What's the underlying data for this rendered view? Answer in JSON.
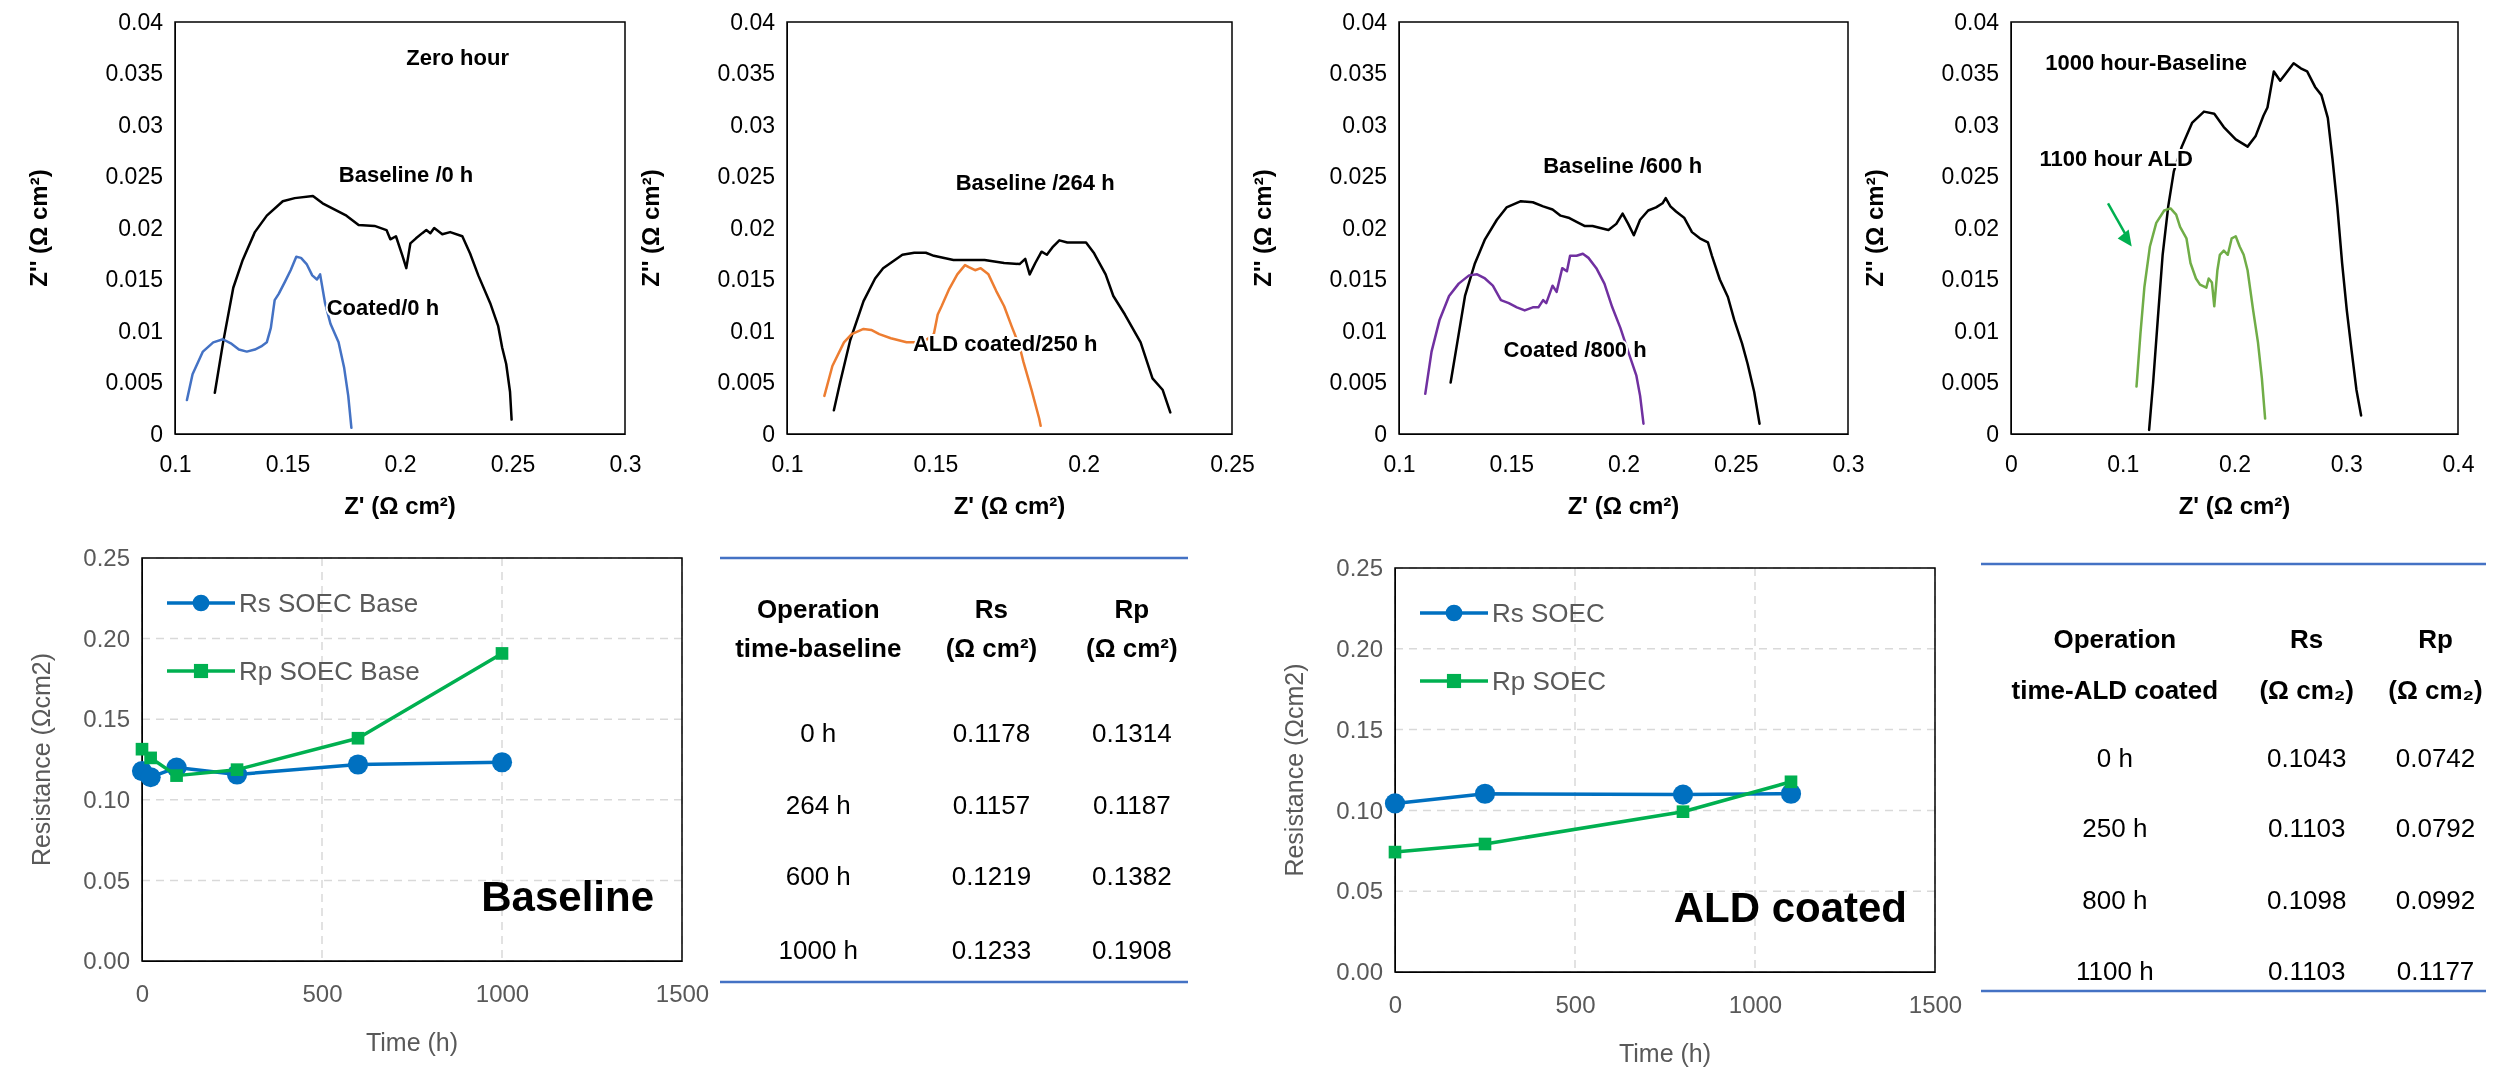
{
  "chart_data": [
    {
      "type": "line",
      "xlabel": "Z' (Ω cm²)",
      "ylabel": "Z'' (Ω cm²)",
      "xlim": [
        0.1,
        0.3
      ],
      "xticks": [
        0.1,
        0.15,
        0.2,
        0.25,
        0.3
      ],
      "ylim": [
        0,
        0.04
      ],
      "yticks": [
        0,
        0.005,
        0.01,
        0.015,
        0.02,
        0.025,
        0.03,
        0.035,
        0.04
      ],
      "series": [
        {
          "color": "#000000",
          "x": [
            0.1177,
            0.1213,
            0.1259,
            0.1301,
            0.1355,
            0.1408,
            0.1479,
            0.1532,
            0.1613,
            0.1656,
            0.1762,
            0.1816,
            0.1887,
            0.194,
            0.1957,
            0.1982,
            0.2011,
            0.2028,
            0.2046,
            0.2071,
            0.2099,
            0.2117,
            0.2135,
            0.2152,
            0.2188,
            0.2223,
            0.2277,
            0.2312,
            0.2348,
            0.2401,
            0.2436,
            0.2454,
            0.2472,
            0.2489,
            0.2496
          ],
          "values": [
            0.004,
            0.0088,
            0.0142,
            0.0169,
            0.0196,
            0.0212,
            0.0226,
            0.0229,
            0.0231,
            0.0224,
            0.0212,
            0.0203,
            0.0202,
            0.0198,
            0.0189,
            0.0192,
            0.0173,
            0.0161,
            0.0185,
            0.019,
            0.0195,
            0.0198,
            0.0195,
            0.02,
            0.0194,
            0.0196,
            0.0192,
            0.0175,
            0.0154,
            0.0127,
            0.0105,
            0.0084,
            0.0068,
            0.0041,
            0.0014
          ]
        },
        {
          "color": "#4472c4",
          "x": [
            0.1053,
            0.1078,
            0.1124,
            0.117,
            0.1213,
            0.1248,
            0.1284,
            0.1319,
            0.1355,
            0.1383,
            0.1408,
            0.1426,
            0.1443,
            0.1461,
            0.1489,
            0.1514,
            0.1539,
            0.156,
            0.1585,
            0.161,
            0.1631,
            0.1645,
            0.1667,
            0.1691,
            0.1727,
            0.1752,
            0.177,
            0.1784
          ],
          "values": [
            0.0033,
            0.0058,
            0.008,
            0.0089,
            0.0092,
            0.0088,
            0.0082,
            0.008,
            0.0082,
            0.0085,
            0.0089,
            0.0103,
            0.013,
            0.0136,
            0.0148,
            0.0159,
            0.0172,
            0.0171,
            0.0165,
            0.0154,
            0.015,
            0.0155,
            0.0127,
            0.0107,
            0.0089,
            0.0064,
            0.0037,
            0.0006
          ]
        }
      ],
      "annotations": [
        "Zero hour",
        "Baseline /0 h",
        "Coated/0 h"
      ]
    },
    {
      "type": "line",
      "xlabel": "Z' (Ω cm²)",
      "ylabel": "Z'' (Ω cm²)",
      "xlim": [
        0.1,
        0.25
      ],
      "xticks": [
        0.1,
        0.15,
        0.2,
        0.25
      ],
      "ylim": [
        0,
        0.04
      ],
      "yticks": [
        0,
        0.005,
        0.01,
        0.015,
        0.02,
        0.025,
        0.03,
        0.035,
        0.04
      ],
      "series": [
        {
          "color": "#000000",
          "x": [
            0.1158,
            0.1179,
            0.1213,
            0.1258,
            0.1297,
            0.1324,
            0.1389,
            0.1429,
            0.1468,
            0.1495,
            0.1561,
            0.1613,
            0.1666,
            0.1732,
            0.1784,
            0.1803,
            0.1818,
            0.1837,
            0.1858,
            0.1876,
            0.1897,
            0.1918,
            0.1945,
            0.2008,
            0.2034,
            0.2074,
            0.21,
            0.2139,
            0.2192,
            0.2232,
            0.2266,
            0.2292
          ],
          "values": [
            0.0023,
            0.005,
            0.0091,
            0.0129,
            0.0151,
            0.0161,
            0.0174,
            0.0176,
            0.0176,
            0.0173,
            0.0169,
            0.0169,
            0.0169,
            0.0166,
            0.0165,
            0.017,
            0.0155,
            0.0166,
            0.0177,
            0.0174,
            0.0182,
            0.0188,
            0.0186,
            0.0186,
            0.0176,
            0.0155,
            0.0134,
            0.0116,
            0.0089,
            0.0054,
            0.0043,
            0.0021
          ]
        },
        {
          "color": "#ed7d31",
          "x": [
            0.1126,
            0.1153,
            0.1192,
            0.1218,
            0.1258,
            0.1284,
            0.1311,
            0.135,
            0.1403,
            0.1429,
            0.1468,
            0.1495,
            0.1508,
            0.1521,
            0.1547,
            0.1574,
            0.16,
            0.1613,
            0.1634,
            0.1653,
            0.1679,
            0.1705,
            0.1732,
            0.1758,
            0.1784,
            0.1797,
            0.1824,
            0.185,
            0.1855
          ],
          "values": [
            0.0037,
            0.0066,
            0.0089,
            0.0097,
            0.0102,
            0.0101,
            0.0097,
            0.0093,
            0.0089,
            0.0089,
            0.0091,
            0.0097,
            0.0116,
            0.0124,
            0.0141,
            0.0155,
            0.0164,
            0.0162,
            0.0159,
            0.0161,
            0.0155,
            0.0139,
            0.0124,
            0.0104,
            0.0085,
            0.007,
            0.0043,
            0.0015,
            0.0008
          ]
        }
      ],
      "annotations": [
        "Baseline /264 h",
        "ALD coated/250 h"
      ]
    },
    {
      "type": "line",
      "xlabel": "Z' (Ω cm²)",
      "ylabel": "Z'' (Ω cm²)",
      "xlim": [
        0.1,
        0.3
      ],
      "xticks": [
        0.1,
        0.15,
        0.2,
        0.25,
        0.3
      ],
      "ylim": [
        0,
        0.04
      ],
      "yticks": [
        0,
        0.005,
        0.01,
        0.015,
        0.02,
        0.025,
        0.03,
        0.035,
        0.04
      ],
      "series": [
        {
          "color": "#000000",
          "x": [
            0.123,
            0.1259,
            0.1294,
            0.1337,
            0.1383,
            0.1436,
            0.1479,
            0.1543,
            0.1596,
            0.1642,
            0.1684,
            0.172,
            0.1755,
            0.1791,
            0.1826,
            0.1862,
            0.1897,
            0.1933,
            0.1968,
            0.1996,
            0.2021,
            0.2046,
            0.2074,
            0.211,
            0.2145,
            0.2174,
            0.2188,
            0.2209,
            0.2234,
            0.227,
            0.2305,
            0.234,
            0.2376,
            0.2394,
            0.2429,
            0.2465,
            0.2493,
            0.2528,
            0.2553,
            0.2582,
            0.2606
          ],
          "values": [
            0.005,
            0.0088,
            0.0134,
            0.0165,
            0.0189,
            0.0208,
            0.022,
            0.0226,
            0.0225,
            0.0221,
            0.0218,
            0.0212,
            0.021,
            0.0206,
            0.0202,
            0.0202,
            0.02,
            0.0198,
            0.0204,
            0.0214,
            0.0204,
            0.0193,
            0.0208,
            0.0217,
            0.022,
            0.0224,
            0.0229,
            0.0221,
            0.0216,
            0.021,
            0.0196,
            0.019,
            0.0186,
            0.0173,
            0.015,
            0.0133,
            0.0111,
            0.0088,
            0.0068,
            0.0041,
            0.001
          ]
        },
        {
          "color": "#7030a0",
          "x": [
            0.1117,
            0.1145,
            0.1181,
            0.1223,
            0.1266,
            0.1312,
            0.1348,
            0.1383,
            0.1418,
            0.1454,
            0.1489,
            0.1525,
            0.156,
            0.1596,
            0.1621,
            0.1642,
            0.1656,
            0.1684,
            0.1702,
            0.1727,
            0.1748,
            0.1762,
            0.1791,
            0.1819,
            0.1844,
            0.1879,
            0.1915,
            0.195,
            0.1986,
            0.2021,
            0.2057,
            0.2074,
            0.2089
          ],
          "values": [
            0.0039,
            0.008,
            0.0111,
            0.0134,
            0.0146,
            0.0154,
            0.0155,
            0.0151,
            0.0144,
            0.013,
            0.0127,
            0.0123,
            0.012,
            0.0123,
            0.0123,
            0.013,
            0.0127,
            0.0144,
            0.0138,
            0.0161,
            0.0158,
            0.0173,
            0.0173,
            0.0175,
            0.0171,
            0.0161,
            0.0146,
            0.0123,
            0.0103,
            0.008,
            0.0057,
            0.0037,
            0.001
          ]
        }
      ],
      "annotations": [
        "Baseline /600 h",
        "Coated /800 h"
      ]
    },
    {
      "type": "line",
      "xlabel": "Z' (Ω cm²)",
      "ylabel": "Z'' (Ω cm²)",
      "xlim": [
        0,
        0.4
      ],
      "xticks": [
        0,
        0.1,
        0.2,
        0.3,
        0.4
      ],
      "ylim": [
        0,
        0.04
      ],
      "yticks": [
        0,
        0.005,
        0.01,
        0.015,
        0.02,
        0.025,
        0.03,
        0.035,
        0.04
      ],
      "series": [
        {
          "color": "#000000",
          "x": [
            0.1236,
            0.1272,
            0.1314,
            0.1357,
            0.1407,
            0.1457,
            0.1528,
            0.162,
            0.1727,
            0.1819,
            0.1904,
            0.2011,
            0.2117,
            0.2188,
            0.2259,
            0.2295,
            0.2352,
            0.2409,
            0.2473,
            0.2529,
            0.2593,
            0.265,
            0.2721,
            0.2778,
            0.2835,
            0.2877,
            0.292,
            0.2963,
            0.3005,
            0.3048,
            0.3091,
            0.3133
          ],
          "values": [
            0.0004,
            0.005,
            0.0112,
            0.0174,
            0.0221,
            0.0255,
            0.0279,
            0.0302,
            0.0313,
            0.0311,
            0.0298,
            0.0286,
            0.0279,
            0.0289,
            0.0309,
            0.0317,
            0.0352,
            0.0343,
            0.0352,
            0.036,
            0.0355,
            0.0352,
            0.0337,
            0.0329,
            0.0307,
            0.0267,
            0.0221,
            0.0166,
            0.012,
            0.0081,
            0.0043,
            0.0018
          ]
        },
        {
          "color": "#70ad47",
          "x": [
            0.1123,
            0.1158,
            0.1194,
            0.1243,
            0.13,
            0.1371,
            0.1428,
            0.1478,
            0.1513,
            0.157,
            0.1606,
            0.1655,
            0.1691,
            0.1748,
            0.1769,
            0.1798,
            0.1819,
            0.1847,
            0.1869,
            0.1904,
            0.194,
            0.1975,
            0.2011,
            0.2046,
            0.2082,
            0.2117,
            0.2167,
            0.221,
            0.2245,
            0.2274
          ],
          "values": [
            0.0046,
            0.0097,
            0.0143,
            0.0182,
            0.0205,
            0.0217,
            0.0219,
            0.0213,
            0.0201,
            0.019,
            0.0166,
            0.0151,
            0.0145,
            0.0142,
            0.0151,
            0.0147,
            0.0124,
            0.0159,
            0.0174,
            0.0178,
            0.0174,
            0.019,
            0.0192,
            0.0182,
            0.0174,
            0.0159,
            0.012,
            0.0089,
            0.0054,
            0.0015
          ]
        }
      ],
      "annotations": [
        "1000 hour-Baseline",
        "1100 hour ALD"
      ]
    },
    {
      "type": "line",
      "xlabel": "Time (h)",
      "ylabel": "Resistance (Ωcm2)",
      "xlim": [
        0,
        1500
      ],
      "xticks": [
        0,
        500,
        1000,
        1500
      ],
      "ylim": [
        0,
        0.25
      ],
      "yticks": [
        {
          "value": 0,
          "label": "0.00"
        },
        {
          "value": 0.05,
          "label": "0.05"
        },
        {
          "value": 0.1,
          "label": "0.10"
        },
        {
          "value": 0.15,
          "label": "0.15"
        },
        {
          "value": 0.2,
          "label": "0.20"
        },
        {
          "value": 0.25,
          "label": "0.25"
        }
      ],
      "grid": true,
      "legend": "top left",
      "series": [
        {
          "name": "Rs SOEC Base",
          "color": "#0070c0",
          "marker": "circle",
          "x": [
            0,
            24,
            96,
            264,
            600,
            1000
          ],
          "values": [
            0.1178,
            0.114,
            0.12,
            0.1157,
            0.1219,
            0.1233
          ]
        },
        {
          "name": "Rp SOEC Base",
          "color": "#00b050",
          "marker": "square",
          "x": [
            0,
            24,
            96,
            264,
            600,
            1000
          ],
          "values": [
            0.1314,
            0.126,
            0.115,
            0.1187,
            0.1382,
            0.1908
          ]
        }
      ],
      "annotations": [
        "Baseline"
      ]
    },
    {
      "type": "other",
      "annotations": [
        "Operation time-baseline",
        "Rs (Ω cm²)",
        "Rp (Ω cm²)",
        "0 h",
        "0.1178",
        "0.1314",
        "264 h",
        "0.1157",
        "0.1187",
        "600 h",
        "0.1219",
        "0.1382",
        "1000 h",
        "0.1233",
        "0.1908"
      ]
    },
    {
      "type": "line",
      "xlabel": "Time (h)",
      "ylabel": "Resistance (Ωcm2)",
      "xlim": [
        0,
        1500
      ],
      "xticks": [
        0,
        500,
        1000,
        1500
      ],
      "ylim": [
        0,
        0.25
      ],
      "yticks": [
        {
          "value": 0,
          "label": "0.00"
        },
        {
          "value": 0.05,
          "label": "0.05"
        },
        {
          "value": 0.1,
          "label": "0.10"
        },
        {
          "value": 0.15,
          "label": "0.15"
        },
        {
          "value": 0.2,
          "label": "0.20"
        },
        {
          "value": 0.25,
          "label": "0.25"
        }
      ],
      "grid": true,
      "legend": "top left",
      "series": [
        {
          "name": "Rs SOEC",
          "color": "#0070c0",
          "marker": "circle",
          "x": [
            0,
            250,
            800,
            1100
          ],
          "values": [
            0.1043,
            0.1103,
            0.1098,
            0.1103
          ]
        },
        {
          "name": "Rp SOEC",
          "color": "#00b050",
          "marker": "square",
          "x": [
            0,
            250,
            800,
            1100
          ],
          "values": [
            0.0742,
            0.0792,
            0.0992,
            0.1177
          ]
        }
      ],
      "annotations": [
        "ALD coated"
      ]
    },
    {
      "type": "other",
      "annotations": [
        "Operation time-ALD coated",
        "Rs (Ω cm₂)",
        "Rp (Ω cm₂)",
        "0 h",
        "0.1043",
        "0.0742",
        "250 h",
        "0.1103",
        "0.0792",
        "800 h",
        "0.1098",
        "0.0992",
        "1100 h",
        "0.1103",
        "0.1177"
      ]
    }
  ]
}
